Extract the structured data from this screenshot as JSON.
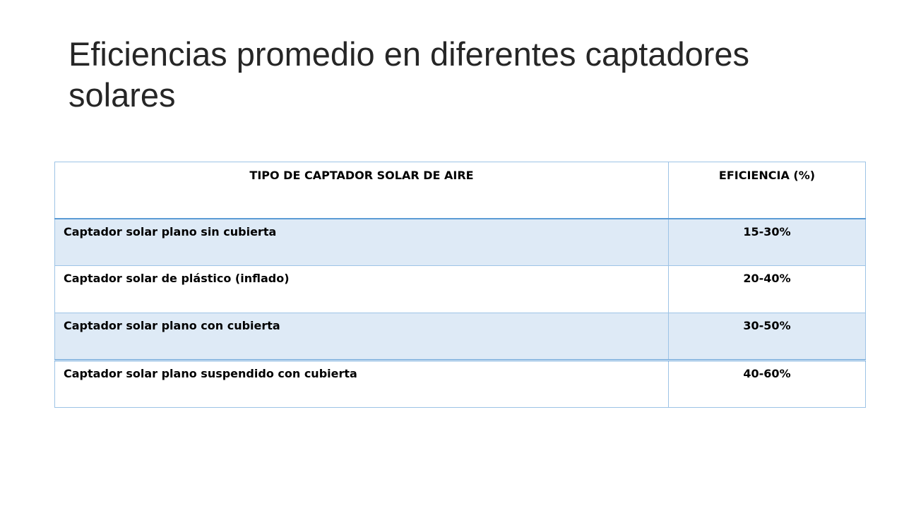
{
  "slide": {
    "title": "Eficiencias promedio en diferentes captadores solares"
  },
  "table": {
    "headers": {
      "type": "TIPO DE CAPTADOR SOLAR DE AIRE",
      "efficiency": "EFICIENCIA (%)"
    },
    "rows": [
      {
        "type": "Captador solar plano sin cubierta",
        "efficiency": "15-30%"
      },
      {
        "type": "Captador solar de plástico (inflado)",
        "efficiency": "20-40%"
      },
      {
        "type": "Captador solar plano con cubierta",
        "efficiency": "30-50%"
      },
      {
        "type": "Captador solar plano suspendido con cubierta",
        "efficiency": "40-60%"
      }
    ]
  },
  "colors": {
    "title_text": "#262626",
    "border": "#9dc3e6",
    "border_strong": "#5b9bd5",
    "row_shade": "#deeaf6"
  }
}
